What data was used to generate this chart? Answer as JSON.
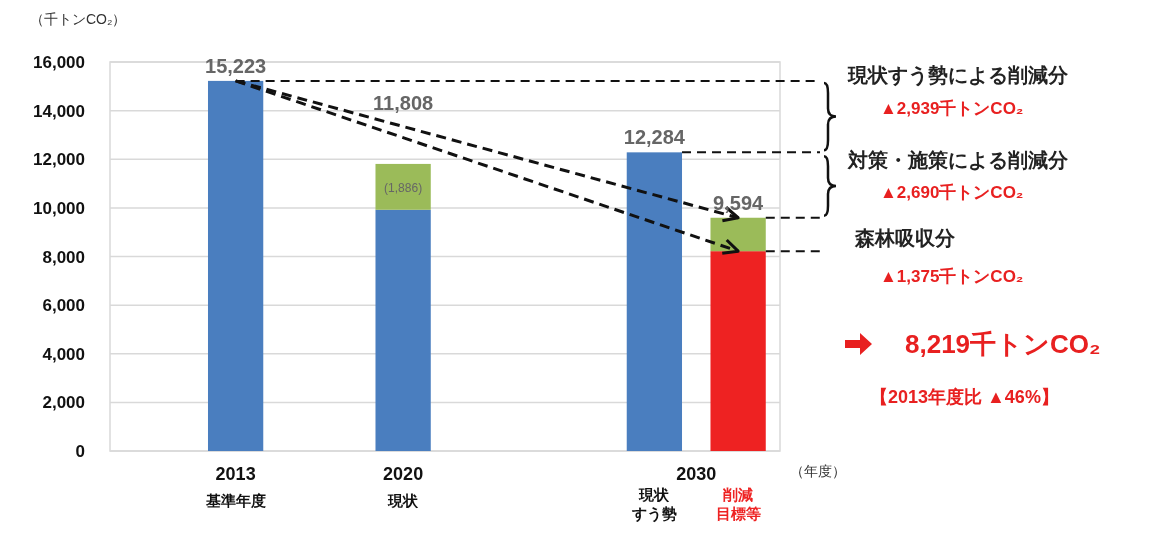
{
  "chart_data": {
    "type": "bar",
    "stacked": true,
    "ylabel": "（千トンCO₂）",
    "xlabel": "（年度）",
    "categories": [
      null,
      "2013\n基準年度",
      null,
      "2020\n現状",
      null,
      null,
      "現状すう勢",
      "削減目標等"
    ],
    "series": [
      {
        "color": "#4a7ebf",
        "values": [
          null,
          15223,
          null,
          9922,
          null,
          null,
          12284,
          null
        ]
      },
      {
        "color": "#ee2222",
        "values": [
          null,
          null,
          null,
          null,
          null,
          null,
          null,
          8219
        ]
      },
      {
        "color": "#9bbb59",
        "values": [
          null,
          null,
          null,
          1886,
          null,
          null,
          null,
          1375
        ],
        "value_labels": [
          null,
          null,
          null,
          "(1,886)",
          null,
          null,
          null,
          null
        ]
      }
    ],
    "totals": [
      null,
      "15,223",
      null,
      "11,808",
      null,
      null,
      "12,284",
      "9,594"
    ],
    "ylim": [
      0,
      16000
    ],
    "yticks": [
      0,
      {
        "value": 2000,
        "label": "2,000"
      },
      {
        "value": 4000,
        "label": "4,000"
      },
      {
        "value": 6000,
        "label": "6,000"
      },
      {
        "value": 8000,
        "label": "8,000"
      },
      {
        "value": 10000,
        "label": "10,000"
      },
      {
        "value": 12000,
        "label": "12,000"
      },
      {
        "value": 14000,
        "label": "14,000"
      },
      {
        "value": 16000,
        "label": "16,000"
      }
    ],
    "grid": "y",
    "ref_lines": [
      {
        "axis": "y",
        "value": 15223,
        "color": "#111111",
        "line_style": "dashed"
      },
      {
        "axis": "y",
        "value": 12284,
        "color": "#111111",
        "line_style": "dashed"
      }
    ],
    "annotations": [
      "2030",
      "現状すう勢による削減分",
      "▲2,939千トンCO₂",
      "対策・施策による削減分",
      "▲2,690千トンCO₂",
      "森林吸収分",
      "▲1,375千トンCO₂",
      "8,219千トンCO₂",
      "【2013年度比 ▲46%】"
    ]
  }
}
